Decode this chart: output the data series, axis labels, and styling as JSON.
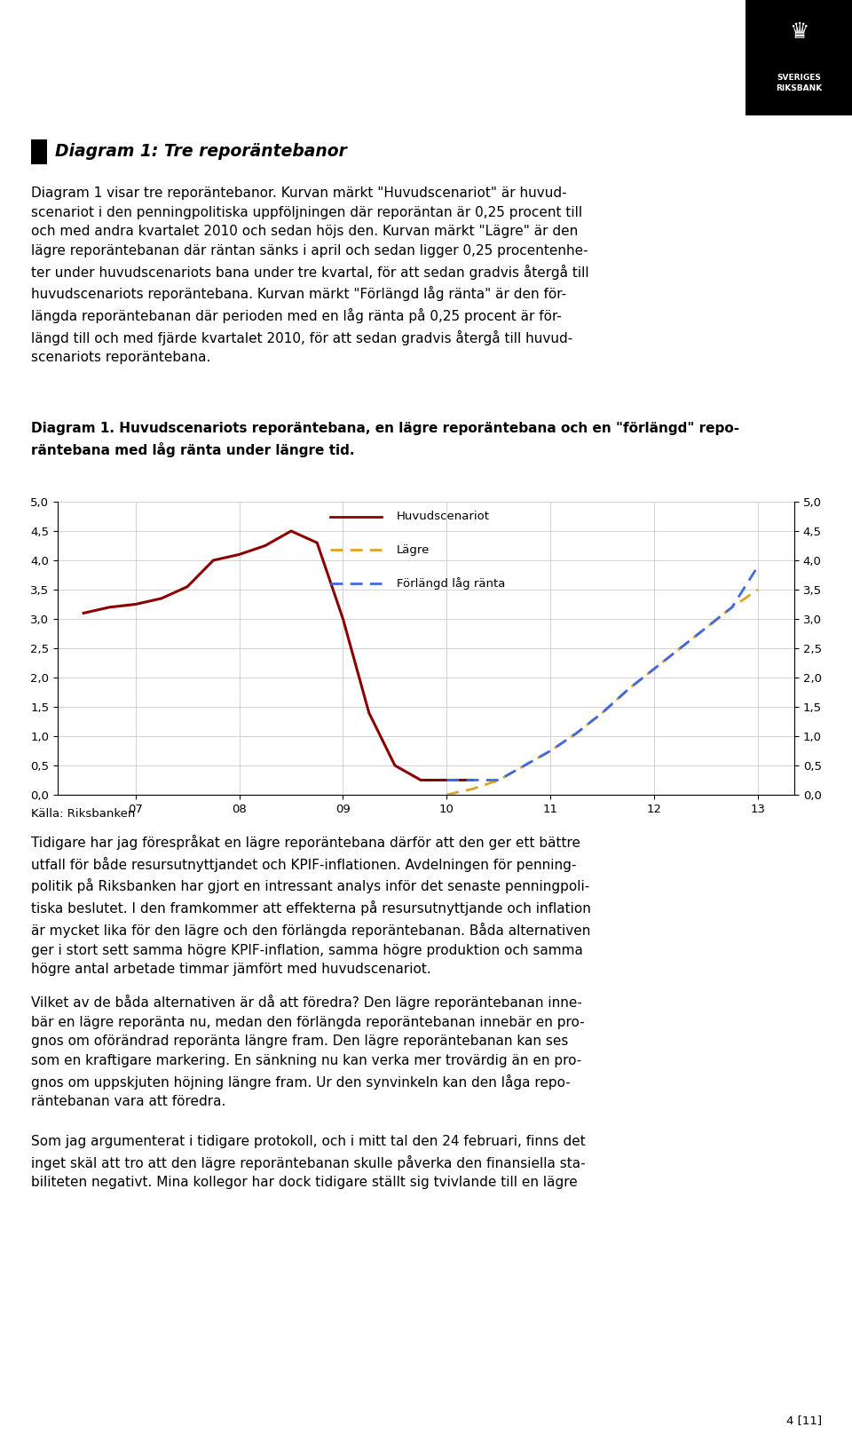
{
  "title_heading": "Diagram 1: Tre reporäntebanor",
  "desc_lines": [
    "Diagram 1 visar tre reporäntebanor. Kurvan märkt \"Huvudscenariot\" är huvud-",
    "scenariot i den penningpolitiska uppföljningen där reporäntan är 0,25 procent till",
    "och med andra kvartalet 2010 och sedan höjs den. Kurvan märkt \"Lägre\" är den",
    "lägre reporäntebanan där räntan sänks i april och sedan ligger 0,25 procentenhe-",
    "ter under huvudscenariots bana under tre kvartal, för att sedan gradvis återgå till",
    "huvudscenariots reporäntebana. Kurvan märkt \"Förlängd låg ränta\" är den för-",
    "längda reporäntebanan där perioden med en låg ränta på 0,25 procent är för-",
    "längd till och med fjärde kvartalet 2010, för att sedan gradvis återgå till huvud-",
    "scenariots reporäntebana."
  ],
  "caption_line1": "Diagram 1. Huvudscenariots reporäntebana, en lägre reporäntebana och en \"förlängd\" repo-",
  "caption_line2": "räntebana med låg ränta under längre tid.",
  "source_text": "Källa: Riksbanken",
  "body1_lines": [
    "Tidigare har jag förespråkat en lägre reporäntebana därför att den ger ett bättre",
    "utfall för både resursutnyttjandet och KPIF-inflationen. Avdelningen för penning-",
    "politik på Riksbanken har gjort en intressant analys inför det senaste penningpoli-",
    "tiska beslutet. I den framkommer att effekterna på resursutnyttjande och inflation",
    "är mycket lika för den lägre och den förlängda reporäntebanan. Båda alternativen",
    "ger i stort sett samma högre KPIF-inflation, samma högre produktion och samma",
    "högre antal arbetade timmar jämfört med huvudscenariot."
  ],
  "body2_lines": [
    "Vilket av de båda alternativen är då att föredra? Den lägre reporäntebanan inne-",
    "bär en lägre reporänta nu, medan den förlängda reporäntebanan innebär en pro-",
    "gnos om oförändrad reporänta längre fram. Den lägre reporäntebanan kan ses",
    "som en kraftigare markering. En sänkning nu kan verka mer trovärdig än en pro-",
    "gnos om uppskjuten höjning längre fram. Ur den synvinkeln kan den låga repo-",
    "räntebanan vara att föredra."
  ],
  "body3_lines": [
    "Som jag argumenterat i tidigare protokoll, och i mitt tal den 24 februari, finns det",
    "inget skäl att tro att den lägre reporäntebanan skulle påverka den finansiella sta-",
    "biliteten negativt. Mina kollegor har dock tidigare ställt sig tvivlande till en lägre"
  ],
  "page_number": "4 [11]",
  "hx": [
    2006.5,
    2006.75,
    2007.0,
    2007.25,
    2007.5,
    2007.75,
    2008.0,
    2008.25,
    2008.5,
    2008.75,
    2009.0,
    2009.25,
    2009.5,
    2009.75,
    2010.0,
    2010.25
  ],
  "hy": [
    3.1,
    3.2,
    3.25,
    3.35,
    3.55,
    4.0,
    4.1,
    4.25,
    4.5,
    4.3,
    3.0,
    1.4,
    0.5,
    0.25,
    0.25,
    0.25
  ],
  "hc": "#8B0000",
  "lx": [
    2010.0,
    2010.25,
    2010.5,
    2010.75,
    2011.0,
    2011.25,
    2011.5,
    2011.75,
    2012.0,
    2012.25,
    2012.5,
    2012.75,
    2013.0
  ],
  "ly": [
    0.0,
    0.1,
    0.25,
    0.5,
    0.75,
    1.05,
    1.4,
    1.8,
    2.15,
    2.5,
    2.85,
    3.2,
    3.5
  ],
  "lc": "#DAA520",
  "fx": [
    2010.0,
    2010.25,
    2010.5,
    2010.75,
    2011.0,
    2011.25,
    2011.5,
    2011.75,
    2012.0,
    2012.25,
    2012.5,
    2012.75,
    2013.0
  ],
  "fy": [
    0.25,
    0.25,
    0.25,
    0.5,
    0.75,
    1.05,
    1.4,
    1.8,
    2.15,
    2.5,
    2.85,
    3.2,
    3.9
  ],
  "fc": "#4169E1",
  "xlim": [
    2006.25,
    2013.35
  ],
  "ylim": [
    0.0,
    5.0
  ],
  "yticks": [
    0.0,
    0.5,
    1.0,
    1.5,
    2.0,
    2.5,
    3.0,
    3.5,
    4.0,
    4.5,
    5.0
  ],
  "xtick_positions": [
    2007.0,
    2008.0,
    2009.0,
    2010.0,
    2011.0,
    2012.0,
    2013.0
  ],
  "xtick_labels": [
    "07",
    "08",
    "09",
    "10",
    "11",
    "12",
    "13"
  ],
  "legend_labels": [
    "Huvudscenariot",
    "Lägre",
    "Förlängd låg ränta"
  ],
  "legend_colors": [
    "#8B0000",
    "#DAA520",
    "#4169E1"
  ],
  "fig_bg": "#FFFFFF",
  "body_fs": 11.0,
  "title_fs": 13.5,
  "caption_fs": 11.0,
  "tick_fs": 9.5,
  "legend_fs": 9.5,
  "source_fs": 9.5
}
